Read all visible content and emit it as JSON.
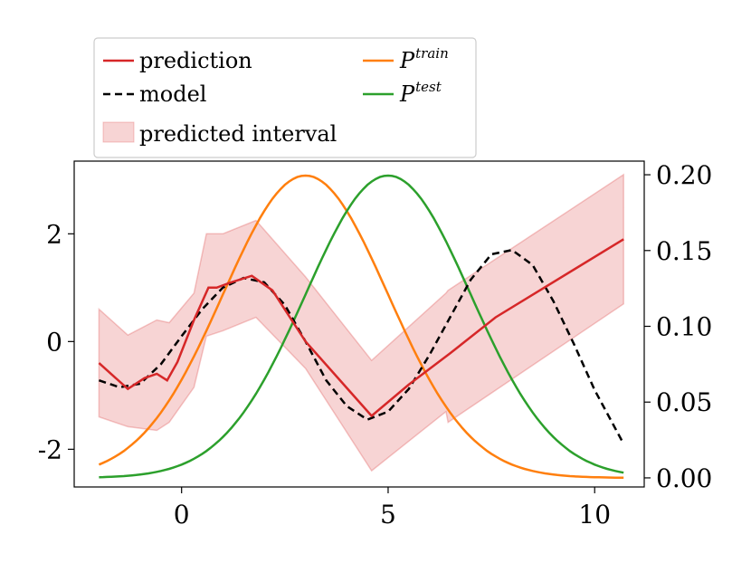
{
  "chart_data": {
    "type": "line",
    "title": "",
    "xlabel": "",
    "ylabel": "",
    "xlim": [
      -2.6,
      11.2
    ],
    "ylim": [
      -2.7,
      3.35
    ],
    "y2lim": [
      -0.006,
      0.209
    ],
    "x_ticks": [
      0,
      5,
      10
    ],
    "x_tick_labels": [
      "0",
      "5",
      "10"
    ],
    "y_ticks": [
      -2,
      0,
      2
    ],
    "y_tick_labels": [
      "-2",
      "0",
      "2"
    ],
    "y2_ticks": [
      0.0,
      0.05,
      0.1,
      0.15,
      0.2
    ],
    "y2_tick_labels": [
      "0.00",
      "0.05",
      "0.10",
      "0.15",
      "0.20"
    ],
    "legend_placement": "top-left, above plot",
    "grid": false,
    "series": [
      {
        "name": "prediction",
        "axis": "left",
        "style": "solid",
        "color": "#d62728",
        "x": [
          -2.0,
          -1.3,
          -0.9,
          -0.6,
          -0.35,
          -0.1,
          0.3,
          0.65,
          0.85,
          1.2,
          1.7,
          2.2,
          3.0,
          4.6,
          5.5,
          6.5,
          7.6,
          10.7
        ],
        "y": [
          -0.4,
          -0.88,
          -0.68,
          -0.6,
          -0.72,
          -0.38,
          0.4,
          1.0,
          1.0,
          1.1,
          1.22,
          0.95,
          0.0,
          -1.38,
          -0.8,
          -0.22,
          0.45,
          1.9
        ]
      },
      {
        "name": "model",
        "axis": "left",
        "style": "dashed",
        "color": "#000000",
        "x": [
          -2.0,
          -1.5,
          -1.0,
          -0.5,
          0.0,
          0.5,
          1.0,
          1.5,
          2.0,
          2.5,
          3.0,
          3.5,
          4.0,
          4.5,
          5.0,
          5.5,
          6.0,
          6.5,
          7.0,
          7.5,
          8.0,
          8.5,
          9.0,
          9.5,
          10.0,
          10.7
        ],
        "y": [
          -0.72,
          -0.85,
          -0.78,
          -0.42,
          0.1,
          0.6,
          1.0,
          1.18,
          1.1,
          0.68,
          0.0,
          -0.72,
          -1.2,
          -1.45,
          -1.3,
          -0.88,
          -0.25,
          0.45,
          1.15,
          1.62,
          1.7,
          1.42,
          0.75,
          -0.05,
          -0.9,
          -1.9
        ]
      },
      {
        "name": "P^train",
        "axis": "right",
        "style": "solid",
        "color": "#ff7f0e",
        "mean": 3,
        "sd": 2
      },
      {
        "name": "P^test",
        "axis": "right",
        "style": "solid",
        "color": "#2ca02c",
        "mean": 5,
        "sd": 2
      }
    ],
    "interval": {
      "name": "predicted interval",
      "axis": "left",
      "color": "#d62728",
      "x": [
        -2.0,
        -1.3,
        -0.6,
        -0.3,
        0.3,
        0.6,
        1.0,
        1.8,
        3.0,
        4.6,
        6.4,
        6.45,
        10.7
      ],
      "lower": [
        -1.4,
        -1.58,
        -1.65,
        -1.5,
        -0.85,
        0.1,
        0.2,
        0.45,
        -0.5,
        -2.4,
        -1.3,
        -1.5,
        0.7
      ],
      "upper": [
        0.6,
        0.12,
        0.4,
        0.35,
        0.9,
        2.0,
        2.0,
        2.25,
        1.2,
        -0.35,
        0.9,
        0.95,
        3.1
      ]
    }
  },
  "legend": {
    "prediction": "prediction",
    "model": "model",
    "interval": "predicted interval",
    "p_train_base": "P",
    "p_train_sup": "train",
    "p_test_base": "P",
    "p_test_sup": "test"
  }
}
